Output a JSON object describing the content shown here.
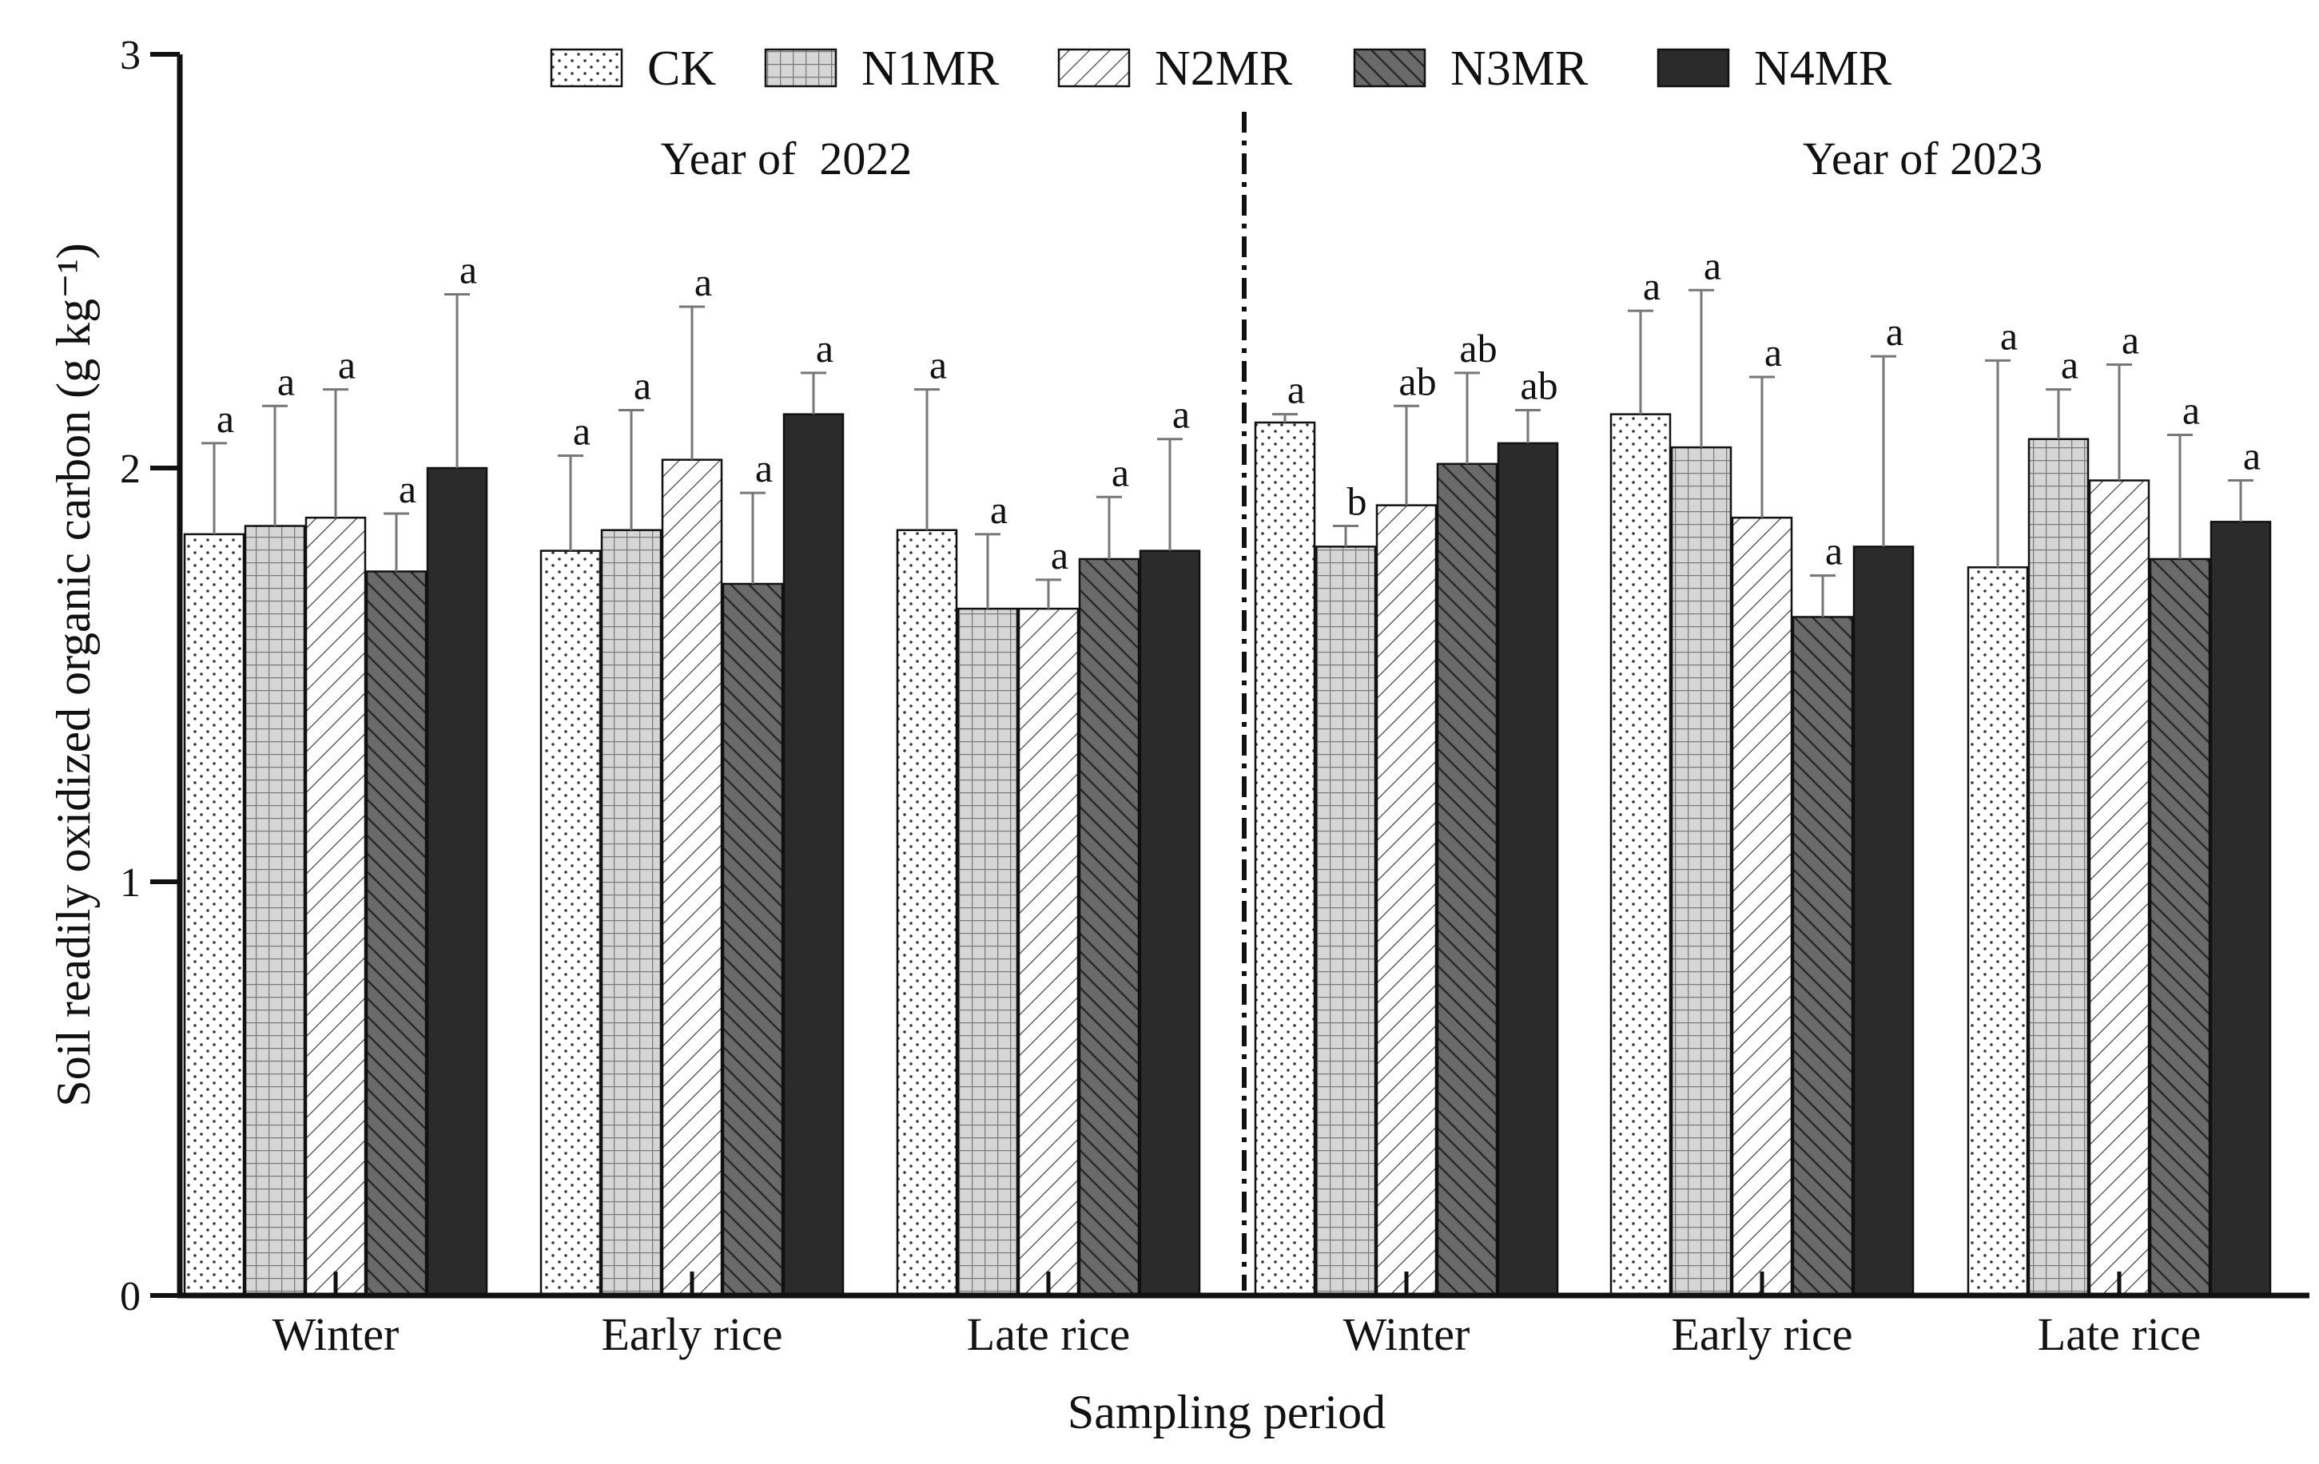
{
  "chart_data": {
    "type": "bar",
    "title": "",
    "xlabel": "Sampling period",
    "ylabel": "Soil readily oxidized organic carbon (g kg⁻¹)",
    "ylim": [
      0,
      3
    ],
    "yticks": [
      "0",
      "1",
      "2",
      "3"
    ],
    "grid": false,
    "legend_position": "top",
    "categories": [
      "Winter",
      "Early rice",
      "Late rice",
      "Winter",
      "Early rice",
      "Late rice"
    ],
    "year_groups": [
      {
        "label": "Year of  2022",
        "categories": [
          0,
          1,
          2
        ]
      },
      {
        "label": "Year of 2023",
        "categories": [
          3,
          4,
          5
        ]
      }
    ],
    "series": [
      {
        "name": "CK",
        "pattern": "dots",
        "values": [
          1.84,
          1.8,
          1.85,
          2.11,
          2.13,
          1.76
        ],
        "errors": [
          0.22,
          0.23,
          0.34,
          0.02,
          0.25,
          0.5
        ],
        "letters": [
          "a",
          "a",
          "a",
          "a",
          "a",
          "a"
        ]
      },
      {
        "name": "N1MR",
        "pattern": "grid",
        "values": [
          1.86,
          1.85,
          1.66,
          1.81,
          2.05,
          2.07
        ],
        "errors": [
          0.29,
          0.29,
          0.18,
          0.05,
          0.38,
          0.12
        ],
        "letters": [
          "a",
          "a",
          "a",
          "b",
          "a",
          "a"
        ]
      },
      {
        "name": "N2MR",
        "pattern": "hatch-light",
        "values": [
          1.88,
          2.02,
          1.66,
          1.91,
          1.88,
          1.97
        ],
        "errors": [
          0.31,
          0.37,
          0.07,
          0.24,
          0.34,
          0.28
        ],
        "letters": [
          "a",
          "a",
          "a",
          "ab",
          "a",
          "a"
        ]
      },
      {
        "name": "N3MR",
        "pattern": "hatch-dark",
        "values": [
          1.75,
          1.72,
          1.78,
          2.01,
          1.64,
          1.78
        ],
        "errors": [
          0.14,
          0.22,
          0.15,
          0.22,
          0.1,
          0.3
        ],
        "letters": [
          "a",
          "a",
          "a",
          "ab",
          "a",
          "a"
        ]
      },
      {
        "name": "N4MR",
        "pattern": "solid",
        "values": [
          2.0,
          2.13,
          1.8,
          2.06,
          1.81,
          1.87
        ],
        "errors": [
          0.42,
          0.1,
          0.27,
          0.08,
          0.46,
          0.1
        ],
        "letters": [
          "a",
          "a",
          "a",
          "ab",
          "a",
          "a"
        ]
      }
    ]
  }
}
